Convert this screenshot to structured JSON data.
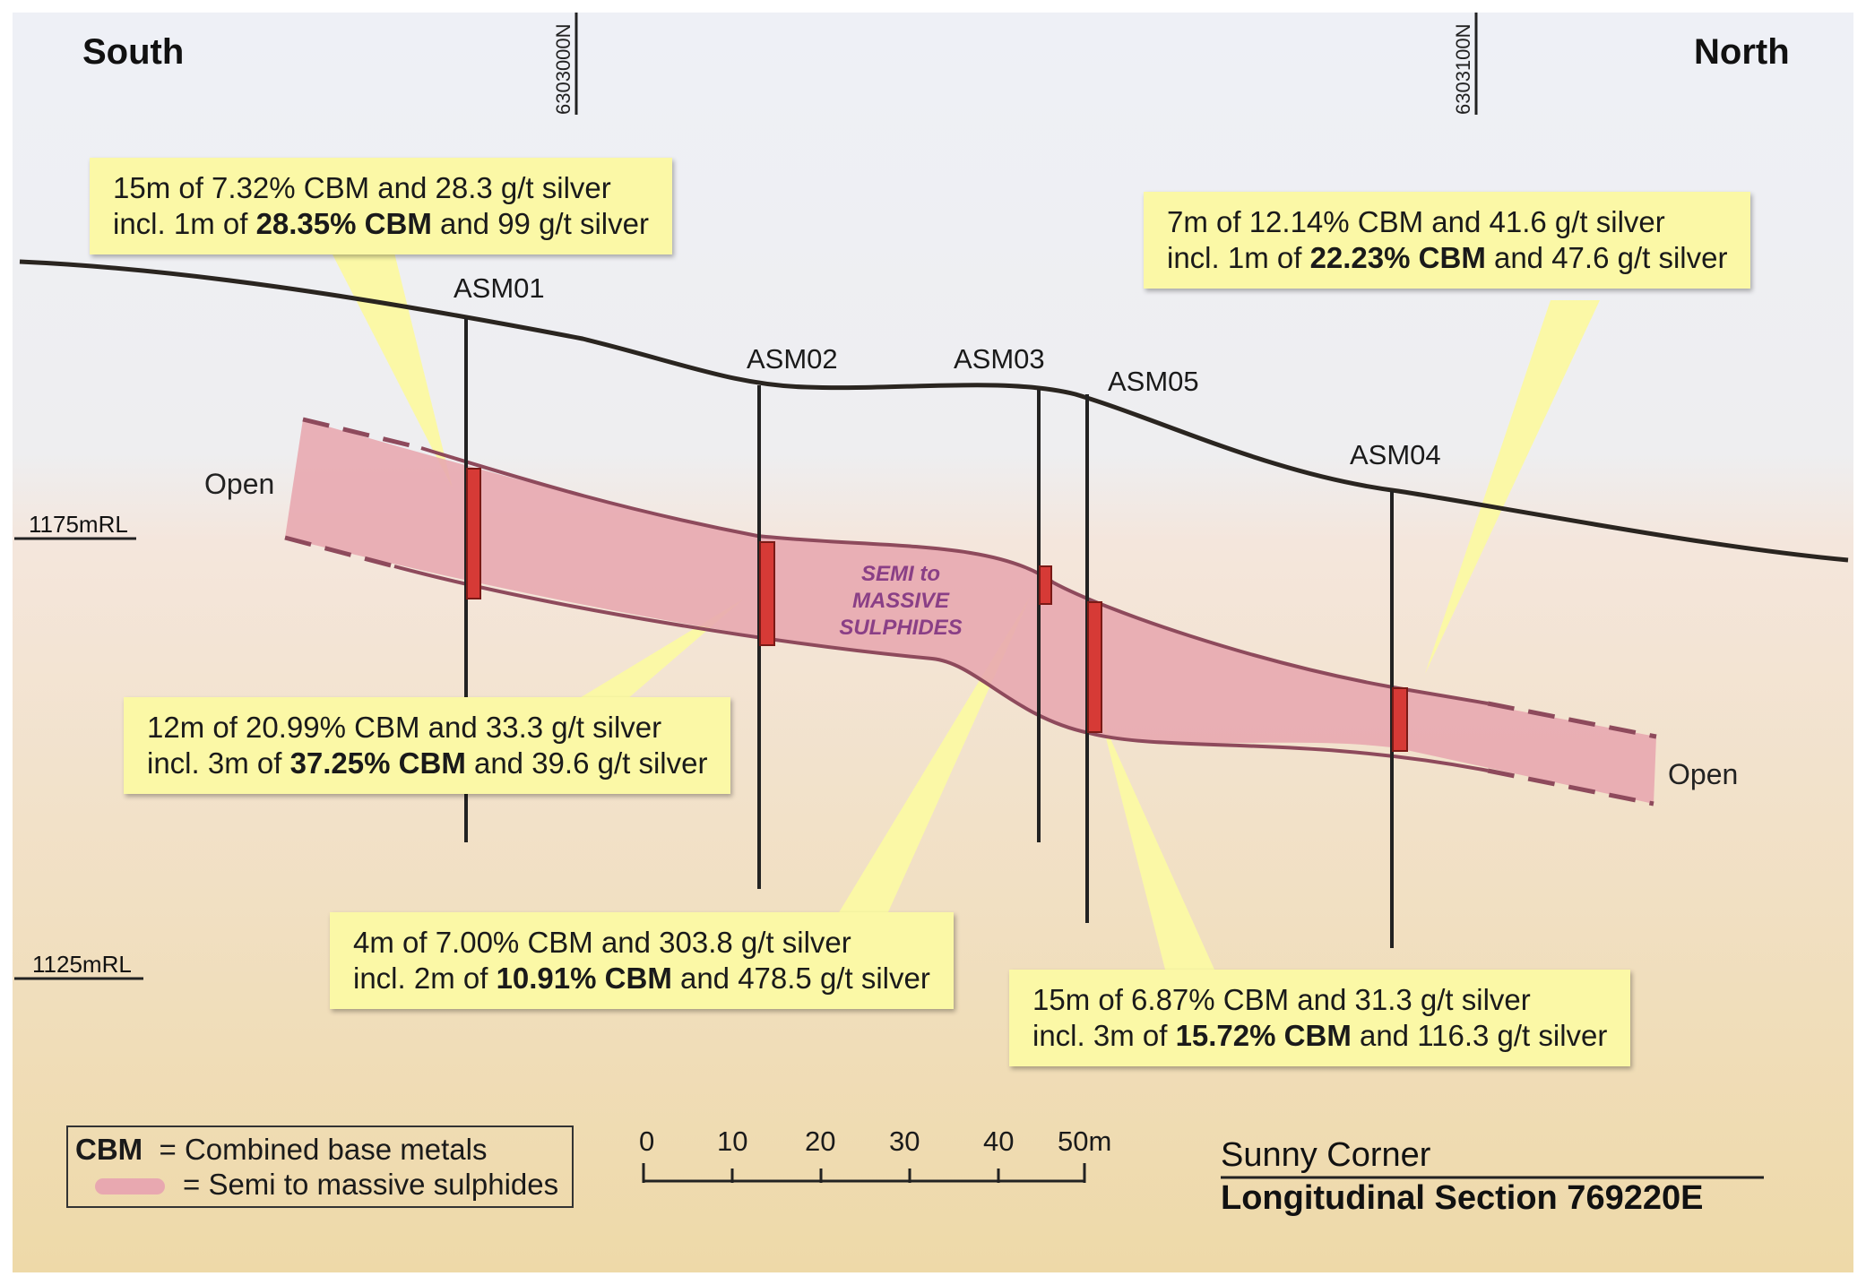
{
  "directions": {
    "south": "South",
    "north": "North"
  },
  "grid_lines": [
    "6303000N",
    "6303100N"
  ],
  "elevations": [
    "1175mRL",
    "1125mRL"
  ],
  "holes": [
    "ASM01",
    "ASM02",
    "ASM03",
    "ASM05",
    "ASM04"
  ],
  "open_labels": {
    "left": "Open",
    "right": "Open"
  },
  "zone_label": [
    "SEMI to",
    "MASSIVE",
    "SULPHIDES"
  ],
  "callouts": [
    {
      "hole": "ASM01",
      "line1": "15m of 7.32% CBM and 28.3 g/t silver",
      "line2_pre": "incl. 1m of ",
      "line2_bold": "28.35% CBM",
      "line2_post": " and 99 g/t silver"
    },
    {
      "hole": "ASM04",
      "line1": "7m of 12.14% CBM and 41.6 g/t silver",
      "line2_pre": "incl. 1m of ",
      "line2_bold": "22.23% CBM",
      "line2_post": " and 47.6 g/t silver"
    },
    {
      "hole": "ASM02",
      "line1": "12m of 20.99% CBM and 33.3 g/t silver",
      "line2_pre": "incl. 3m of ",
      "line2_bold": "37.25% CBM",
      "line2_post": " and 39.6 g/t silver"
    },
    {
      "hole": "ASM03",
      "line1": "4m of 7.00% CBM and 303.8 g/t silver",
      "line2_pre": "incl. 2m of ",
      "line2_bold": "10.91% CBM",
      "line2_post": " and 478.5 g/t silver"
    },
    {
      "hole": "ASM05",
      "line1": "15m of 6.87% CBM and 31.3 g/t silver",
      "line2_pre": "incl. 3m of ",
      "line2_bold": "15.72% CBM",
      "line2_post": " and 116.3 g/t silver"
    }
  ],
  "legend": {
    "cbm_abbr": "CBM",
    "cbm_text": "= Combined base metals",
    "sulphide_text": "= Semi to massive sulphides"
  },
  "scale_bar": {
    "labels": [
      "0",
      "10",
      "20",
      "30",
      "40",
      "50m"
    ]
  },
  "title": {
    "line1": "Sunny Corner",
    "line2": "Longitudinal Section 769220E"
  },
  "colors": {
    "sky": "#eef0f6",
    "ground_top": "#f3e6d8",
    "ground_bottom": "#efd9a6",
    "sulphide_body": "#e8a8b0",
    "intercept": "#d63a36",
    "callout_fill": "#fbf8a6"
  }
}
